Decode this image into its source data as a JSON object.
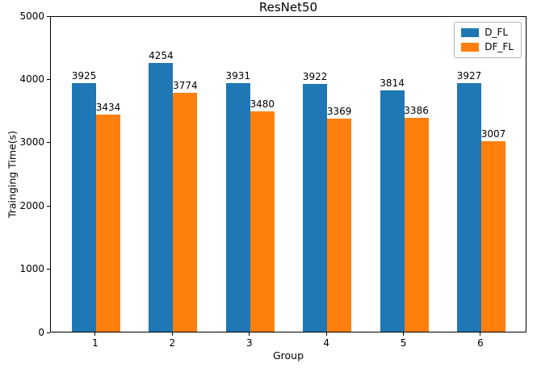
{
  "chart_data": {
    "type": "bar",
    "title": "ResNet50",
    "xlabel": "Group",
    "ylabel": "Trainging Time(s)",
    "categories": [
      "1",
      "2",
      "3",
      "4",
      "5",
      "6"
    ],
    "series": [
      {
        "name": "D_FL",
        "color": "#1f77b4",
        "values": [
          3925,
          4254,
          3931,
          3922,
          3814,
          3927
        ]
      },
      {
        "name": "DF_FL",
        "color": "#ff7f0e",
        "values": [
          3434,
          3774,
          3480,
          3369,
          3386,
          3007
        ]
      }
    ],
    "ylim": [
      0,
      5000
    ],
    "yticks": [
      0,
      1000,
      2000,
      3000,
      4000,
      5000
    ],
    "grid": false,
    "legend_position": "upper right",
    "bar_value_labels_shown": true
  }
}
